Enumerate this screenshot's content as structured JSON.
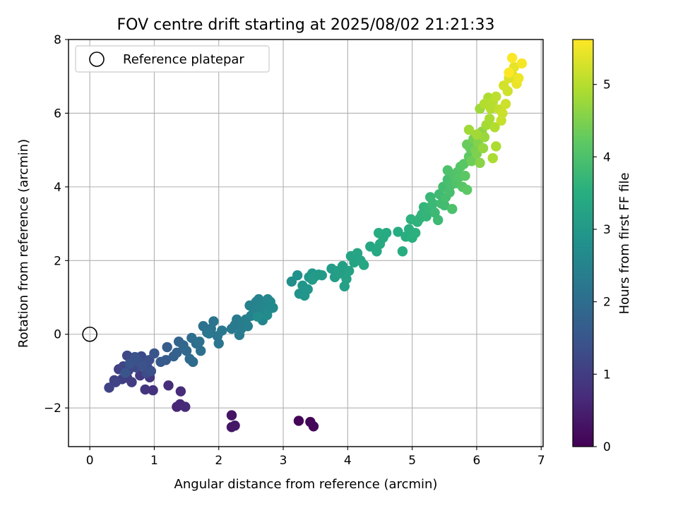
{
  "chart_data": {
    "type": "scatter",
    "title": "FOV centre drift starting at 2025/08/02 21:21:33",
    "xlabel": "Angular distance from reference (arcmin)",
    "ylabel": "Rotation from reference (arcmin)",
    "xlim": [
      -0.33,
      7.03
    ],
    "ylim": [
      -3.05,
      8.0
    ],
    "xticks": [
      0,
      1,
      2,
      3,
      4,
      5,
      6,
      7
    ],
    "xtick_labels": [
      "0",
      "1",
      "2",
      "3",
      "4",
      "5",
      "6",
      "7"
    ],
    "yticks": [
      -2,
      0,
      2,
      4,
      6,
      8
    ],
    "ytick_labels": [
      "−2",
      "0",
      "2",
      "4",
      "6",
      "8"
    ],
    "grid": true,
    "legend": {
      "position": "top-left",
      "entries": [
        "Reference platepar"
      ]
    },
    "reference_point": {
      "x": 0,
      "y": 0,
      "label": "Reference platepar"
    },
    "colorbar": {
      "label": "Hours from first FF file",
      "colormap": "viridis",
      "range": [
        0,
        5.62
      ],
      "ticks": [
        0,
        1,
        2,
        3,
        4,
        5
      ],
      "tick_labels": [
        "0",
        "1",
        "2",
        "3",
        "4",
        "5"
      ]
    },
    "series": [
      {
        "columns": [
          "x",
          "y",
          "hours"
        ],
        "points": [
          [
            3.24,
            -2.35,
            0.05
          ],
          [
            3.42,
            -2.38,
            0.08
          ],
          [
            3.47,
            -2.5,
            0.1
          ],
          [
            2.2,
            -2.2,
            0.3
          ],
          [
            2.2,
            -2.52,
            0.32
          ],
          [
            2.25,
            -2.48,
            0.35
          ],
          [
            1.35,
            -1.97,
            0.6
          ],
          [
            1.4,
            -1.9,
            0.62
          ],
          [
            1.48,
            -1.97,
            0.65
          ],
          [
            1.41,
            -1.55,
            0.68
          ],
          [
            1.22,
            -1.39,
            0.72
          ],
          [
            0.98,
            -1.52,
            0.8
          ],
          [
            0.86,
            -1.5,
            0.85
          ],
          [
            0.93,
            -1.17,
            0.9
          ],
          [
            0.78,
            -1.12,
            0.95
          ],
          [
            0.65,
            -1.3,
            1.0
          ],
          [
            0.58,
            -1.18,
            1.02
          ],
          [
            0.5,
            -1.22,
            1.05
          ],
          [
            0.45,
            -0.95,
            1.08
          ],
          [
            0.38,
            -1.25,
            1.1
          ],
          [
            0.3,
            -1.45,
            1.12
          ],
          [
            0.4,
            -1.3,
            1.14
          ],
          [
            0.52,
            -0.87,
            1.16
          ],
          [
            0.6,
            -0.98,
            1.18
          ],
          [
            0.68,
            -0.72,
            1.2
          ],
          [
            0.58,
            -0.58,
            1.22
          ],
          [
            0.72,
            -0.9,
            1.24
          ],
          [
            0.8,
            -0.6,
            1.26
          ],
          [
            0.85,
            -0.78,
            1.28
          ],
          [
            0.9,
            -0.92,
            1.3
          ],
          [
            0.88,
            -1.05,
            1.32
          ],
          [
            0.92,
            -0.7,
            1.34
          ],
          [
            0.95,
            -1.0,
            1.36
          ],
          [
            0.76,
            -0.75,
            1.38
          ],
          [
            0.82,
            -0.85,
            1.4
          ],
          [
            0.7,
            -0.62,
            1.42
          ],
          [
            0.62,
            -0.8,
            1.44
          ],
          [
            0.55,
            -1.05,
            1.46
          ],
          [
            1.0,
            -0.52,
            1.5
          ],
          [
            1.1,
            -0.75,
            1.55
          ],
          [
            1.18,
            -0.7,
            1.6
          ],
          [
            1.2,
            -0.35,
            1.65
          ],
          [
            1.3,
            -0.6,
            1.7
          ],
          [
            1.35,
            -0.5,
            1.75
          ],
          [
            1.38,
            -0.2,
            1.8
          ],
          [
            1.45,
            -0.3,
            1.85
          ],
          [
            1.5,
            -0.45,
            1.9
          ],
          [
            1.55,
            -0.67,
            1.93
          ],
          [
            1.6,
            -0.75,
            1.96
          ],
          [
            1.65,
            -0.25,
            2.0
          ],
          [
            1.58,
            -0.1,
            2.03
          ],
          [
            1.72,
            -0.45,
            2.06
          ],
          [
            1.7,
            -0.2,
            2.08
          ],
          [
            1.76,
            0.22,
            2.1
          ],
          [
            1.82,
            0.05,
            2.12
          ],
          [
            1.88,
            0.15,
            2.14
          ],
          [
            1.92,
            0.35,
            2.16
          ],
          [
            1.98,
            -0.05,
            2.18
          ],
          [
            2.0,
            -0.25,
            2.2
          ],
          [
            1.85,
            0.02,
            2.22
          ],
          [
            2.05,
            0.1,
            2.24
          ],
          [
            2.2,
            0.15,
            2.26
          ],
          [
            2.25,
            0.25,
            2.28
          ],
          [
            2.28,
            0.4,
            2.3
          ],
          [
            2.32,
            -0.02,
            2.32
          ],
          [
            2.35,
            0.15,
            2.34
          ],
          [
            2.38,
            0.28,
            2.36
          ],
          [
            2.42,
            0.4,
            2.38
          ],
          [
            2.45,
            0.22,
            2.4
          ],
          [
            2.5,
            0.5,
            2.42
          ],
          [
            2.48,
            0.78,
            2.44
          ],
          [
            2.55,
            0.65,
            2.46
          ],
          [
            2.58,
            0.88,
            2.48
          ],
          [
            2.62,
            0.95,
            2.5
          ],
          [
            2.65,
            0.72,
            2.52
          ],
          [
            2.68,
            0.38,
            2.54
          ],
          [
            2.7,
            0.55,
            2.56
          ],
          [
            2.72,
            0.82,
            2.58
          ],
          [
            2.76,
            0.95,
            2.6
          ],
          [
            2.78,
            0.68,
            2.62
          ],
          [
            2.8,
            0.88,
            2.64
          ],
          [
            2.84,
            0.72,
            2.66
          ],
          [
            2.75,
            0.52,
            2.68
          ],
          [
            2.6,
            0.48,
            2.7
          ],
          [
            3.13,
            1.43,
            2.75
          ],
          [
            3.22,
            1.6,
            2.8
          ],
          [
            3.25,
            1.1,
            2.85
          ],
          [
            3.3,
            1.32,
            2.9
          ],
          [
            3.33,
            1.05,
            2.92
          ],
          [
            3.38,
            1.22,
            2.94
          ],
          [
            3.4,
            1.55,
            2.96
          ],
          [
            3.45,
            1.65,
            2.98
          ],
          [
            3.5,
            1.58,
            3.0
          ],
          [
            3.55,
            1.62,
            3.02
          ],
          [
            3.6,
            1.6,
            3.04
          ],
          [
            3.45,
            1.48,
            3.06
          ],
          [
            3.75,
            1.78,
            3.08
          ],
          [
            3.8,
            1.55,
            3.1
          ],
          [
            3.85,
            1.72,
            3.12
          ],
          [
            3.88,
            1.65,
            3.14
          ],
          [
            3.92,
            1.85,
            3.16
          ],
          [
            3.95,
            1.3,
            3.18
          ],
          [
            3.98,
            1.5,
            3.2
          ],
          [
            4.02,
            1.72,
            3.22
          ],
          [
            4.05,
            2.12,
            3.24
          ],
          [
            4.1,
            1.95,
            3.26
          ],
          [
            4.15,
            2.2,
            3.28
          ],
          [
            4.2,
            2.0,
            3.3
          ],
          [
            4.25,
            1.88,
            3.32
          ],
          [
            4.35,
            2.38,
            3.34
          ],
          [
            4.45,
            2.25,
            3.36
          ],
          [
            4.5,
            2.45,
            3.38
          ],
          [
            4.55,
            2.62,
            3.4
          ],
          [
            4.6,
            2.75,
            3.42
          ],
          [
            4.48,
            2.75,
            3.44
          ],
          [
            4.78,
            2.78,
            3.46
          ],
          [
            4.85,
            2.25,
            3.48
          ],
          [
            4.9,
            2.65,
            3.5
          ],
          [
            4.95,
            2.85,
            3.52
          ],
          [
            5.0,
            2.62,
            3.54
          ],
          [
            5.05,
            2.75,
            3.56
          ],
          [
            4.98,
            3.12,
            3.58
          ],
          [
            5.08,
            3.05,
            3.6
          ],
          [
            5.12,
            3.15,
            3.62
          ],
          [
            5.15,
            3.25,
            3.64
          ],
          [
            5.18,
            3.45,
            3.66
          ],
          [
            5.22,
            3.2,
            3.68
          ],
          [
            5.25,
            3.38,
            3.7
          ],
          [
            5.3,
            3.48,
            3.72
          ],
          [
            5.28,
            3.72,
            3.74
          ],
          [
            5.32,
            3.55,
            3.76
          ],
          [
            5.35,
            3.3,
            3.78
          ],
          [
            5.4,
            3.1,
            3.8
          ],
          [
            5.42,
            3.8,
            3.82
          ],
          [
            5.45,
            3.55,
            3.84
          ],
          [
            5.5,
            3.5,
            3.86
          ],
          [
            5.48,
            4.0,
            3.88
          ],
          [
            5.52,
            3.72,
            3.9
          ],
          [
            5.55,
            4.2,
            3.92
          ],
          [
            5.58,
            3.85,
            3.94
          ],
          [
            5.6,
            4.05,
            3.96
          ],
          [
            5.62,
            3.4,
            3.98
          ],
          [
            5.55,
            4.45,
            4.0
          ],
          [
            5.65,
            4.3,
            4.02
          ],
          [
            5.68,
            4.1,
            4.04
          ],
          [
            5.7,
            4.4,
            4.06
          ],
          [
            5.72,
            4.25,
            4.08
          ],
          [
            5.75,
            4.55,
            4.1
          ],
          [
            5.78,
            4.0,
            4.12
          ],
          [
            5.8,
            4.62,
            4.14
          ],
          [
            5.82,
            4.3,
            4.16
          ],
          [
            5.85,
            3.92,
            4.18
          ],
          [
            5.88,
            4.82,
            4.2
          ],
          [
            5.9,
            5.05,
            4.25
          ],
          [
            5.85,
            5.15,
            4.3
          ],
          [
            5.92,
            4.7,
            4.35
          ],
          [
            5.95,
            5.3,
            4.4
          ],
          [
            5.98,
            5.0,
            4.45
          ],
          [
            6.0,
            4.9,
            4.5
          ],
          [
            6.02,
            5.2,
            4.55
          ],
          [
            6.05,
            4.65,
            4.6
          ],
          [
            6.08,
            5.5,
            4.65
          ],
          [
            6.1,
            5.05,
            4.7
          ],
          [
            6.12,
            5.35,
            4.75
          ],
          [
            5.88,
            5.55,
            4.8
          ],
          [
            6.0,
            5.42,
            4.82
          ],
          [
            6.15,
            5.68,
            4.85
          ],
          [
            6.2,
            5.85,
            4.88
          ],
          [
            6.25,
            4.78,
            4.9
          ],
          [
            6.3,
            5.1,
            4.92
          ],
          [
            6.28,
            5.62,
            4.95
          ],
          [
            6.22,
            6.12,
            4.98
          ],
          [
            6.25,
            6.3,
            5.0
          ],
          [
            6.3,
            6.45,
            5.05
          ],
          [
            6.35,
            6.1,
            5.1
          ],
          [
            6.38,
            5.8,
            5.15
          ],
          [
            6.4,
            6.0,
            5.18
          ],
          [
            6.45,
            6.25,
            5.2
          ],
          [
            6.48,
            6.6,
            5.22
          ],
          [
            6.42,
            6.75,
            5.25
          ],
          [
            6.5,
            6.95,
            5.3
          ],
          [
            6.55,
            7.05,
            5.35
          ],
          [
            6.58,
            7.25,
            5.4
          ],
          [
            6.62,
            6.8,
            5.45
          ],
          [
            6.65,
            6.95,
            5.5
          ],
          [
            6.7,
            7.35,
            5.55
          ],
          [
            6.55,
            7.5,
            5.6
          ],
          [
            6.5,
            7.1,
            5.62
          ],
          [
            6.18,
            6.42,
            4.92
          ],
          [
            6.12,
            6.25,
            4.96
          ],
          [
            6.05,
            6.12,
            4.78
          ]
        ]
      }
    ]
  }
}
